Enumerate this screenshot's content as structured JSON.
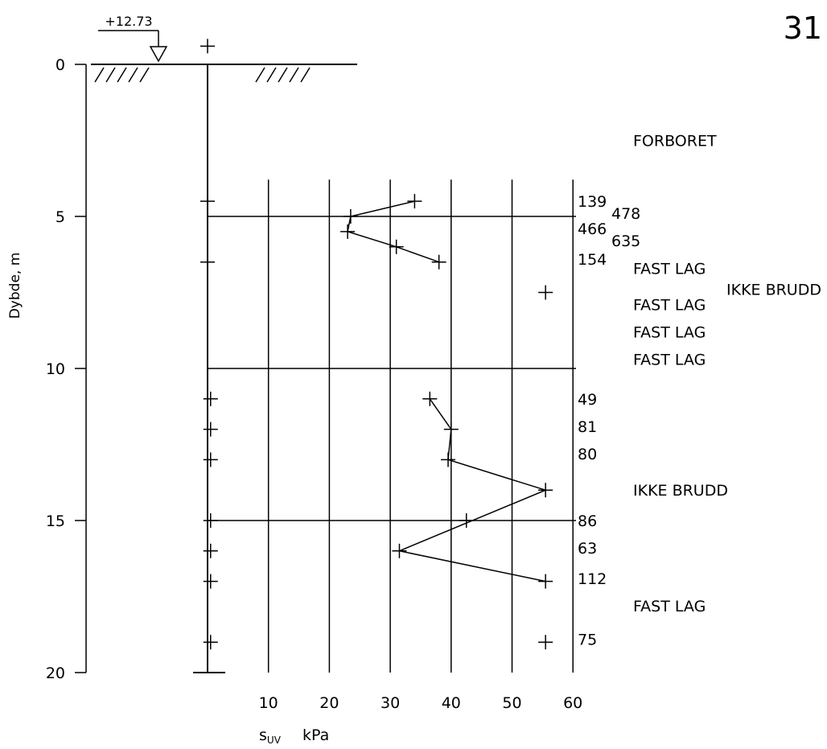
{
  "page_number": "31",
  "chart_data": {
    "type": "line",
    "ylabel": "Dybde, m",
    "xlabel_symbol": "s",
    "xlabel_subscript": "UV",
    "xlabel_unit": "kPa",
    "y_range": [
      0,
      20
    ],
    "y_direction": "down",
    "y_ticks": [
      0,
      5,
      10,
      15,
      20
    ],
    "x_range": [
      0,
      60
    ],
    "x_ticks": [
      10,
      20,
      30,
      40,
      50,
      60
    ],
    "ground_elevation": "+12.73",
    "series": [
      {
        "points": [
          {
            "depth": 4.5,
            "value": 34.0
          },
          {
            "depth": 5.0,
            "value": 23.5
          },
          {
            "depth": 5.5,
            "value": 23.0
          },
          {
            "depth": 6.0,
            "value": 31.0
          },
          {
            "depth": 6.5,
            "value": 38.0
          }
        ]
      },
      {
        "points": [
          {
            "depth": 11.0,
            "value": 36.5
          },
          {
            "depth": 12.0,
            "value": 40.0
          },
          {
            "depth": 13.0,
            "value": 39.5
          },
          {
            "depth": 14.0,
            "value": 55.5
          },
          {
            "depth": 16.0,
            "value": 31.5
          },
          {
            "depth": 17.0,
            "value": 55.5
          }
        ]
      }
    ],
    "extra_markers": [
      {
        "depth": 15.0,
        "value": 42.5
      },
      {
        "depth": 7.5,
        "value": 55.5
      },
      {
        "depth": 19.0,
        "value": 55.5
      }
    ],
    "left_markers": [
      {
        "depth": -0.6,
        "value": 0
      },
      {
        "depth": 4.5,
        "value": 0
      },
      {
        "depth": 6.5,
        "value": 0
      },
      {
        "depth": 11.0,
        "value": 0.5
      },
      {
        "depth": 12.0,
        "value": 0.5
      },
      {
        "depth": 13.0,
        "value": 0.5
      },
      {
        "depth": 15.0,
        "value": 0.5
      },
      {
        "depth": 16.0,
        "value": 0.5
      },
      {
        "depth": 17.0,
        "value": 0.5
      },
      {
        "depth": 19.0,
        "value": 0.5
      }
    ],
    "sensitivity_labels": [
      {
        "depth": 4.5,
        "text": "139",
        "col": 0
      },
      {
        "depth": 4.9,
        "text": "478",
        "col": 1
      },
      {
        "depth": 5.4,
        "text": "466",
        "col": 0
      },
      {
        "depth": 5.8,
        "text": "635",
        "col": 1
      },
      {
        "depth": 6.4,
        "text": "154",
        "col": 0
      },
      {
        "depth": 11.0,
        "text": "49",
        "col": 0
      },
      {
        "depth": 11.9,
        "text": "81",
        "col": 0
      },
      {
        "depth": 12.8,
        "text": "80",
        "col": 0
      },
      {
        "depth": 15.0,
        "text": "86",
        "col": 0
      },
      {
        "depth": 15.9,
        "text": "63",
        "col": 0
      },
      {
        "depth": 16.9,
        "text": "112",
        "col": 0
      },
      {
        "depth": 18.9,
        "text": "75",
        "col": 0
      }
    ],
    "annotations": [
      {
        "depth": 2.5,
        "text": "FORBORET",
        "col": 0
      },
      {
        "depth": 6.7,
        "text": "FAST LAG",
        "col": 0
      },
      {
        "depth": 7.4,
        "text": "IKKE BRUDD",
        "col": 1
      },
      {
        "depth": 7.9,
        "text": "FAST LAG",
        "col": 0
      },
      {
        "depth": 8.8,
        "text": "FAST LAG",
        "col": 0
      },
      {
        "depth": 9.7,
        "text": "FAST LAG",
        "col": 0
      },
      {
        "depth": 14.0,
        "text": "IKKE BRUDD",
        "col": 0
      },
      {
        "depth": 17.8,
        "text": "FAST LAG",
        "col": 0
      }
    ]
  }
}
